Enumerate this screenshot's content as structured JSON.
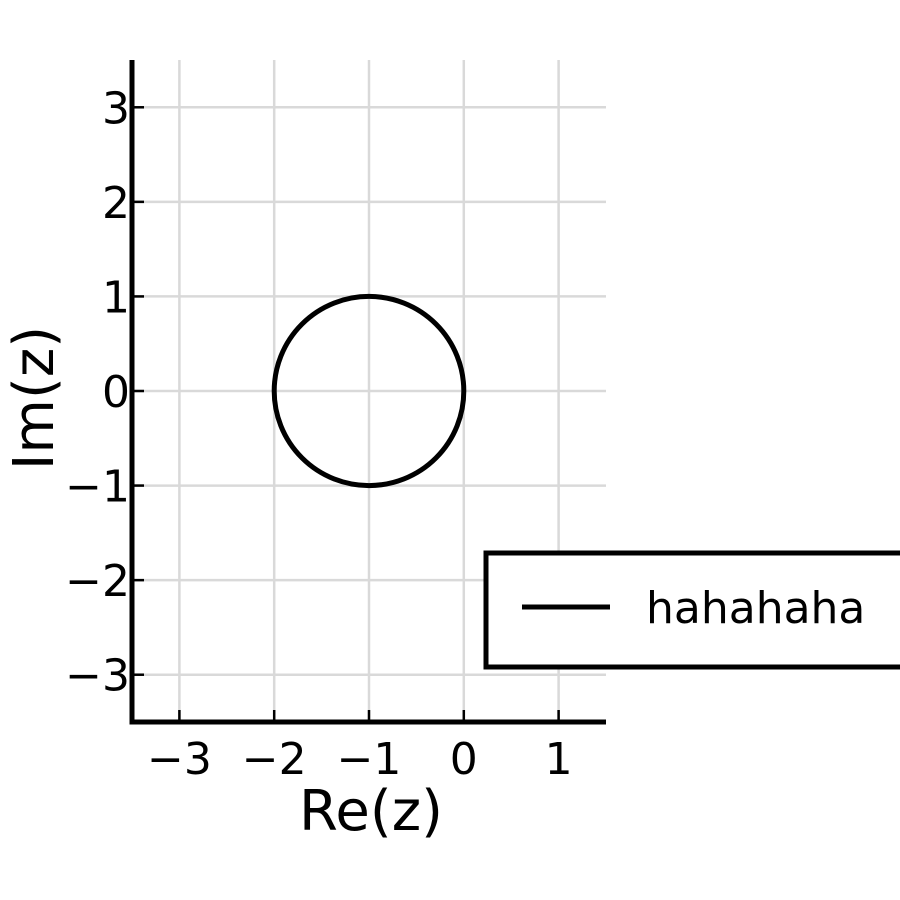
{
  "chart_data": {
    "type": "line",
    "title": "",
    "xlabel": "Re(z)",
    "ylabel": "Im(z)",
    "xlim": [
      -3.5,
      1.5
    ],
    "ylim": [
      -3.5,
      3.5
    ],
    "xticks": [
      -3,
      -2,
      -1,
      0,
      1
    ],
    "yticks": [
      -3,
      -2,
      -1,
      0,
      1,
      2,
      3
    ],
    "xtick_labels": [
      "−3",
      "−2",
      "−1",
      "0",
      "1"
    ],
    "ytick_labels": [
      "−3",
      "−2",
      "−1",
      "0",
      "1",
      "2",
      "3"
    ],
    "grid": true,
    "aspect": "equal",
    "legend_position": "lower-right",
    "series": [
      {
        "name": "hahahaha",
        "shape": "circle",
        "center": [
          -1,
          0
        ],
        "radius": 1,
        "color": "#000000"
      }
    ]
  }
}
